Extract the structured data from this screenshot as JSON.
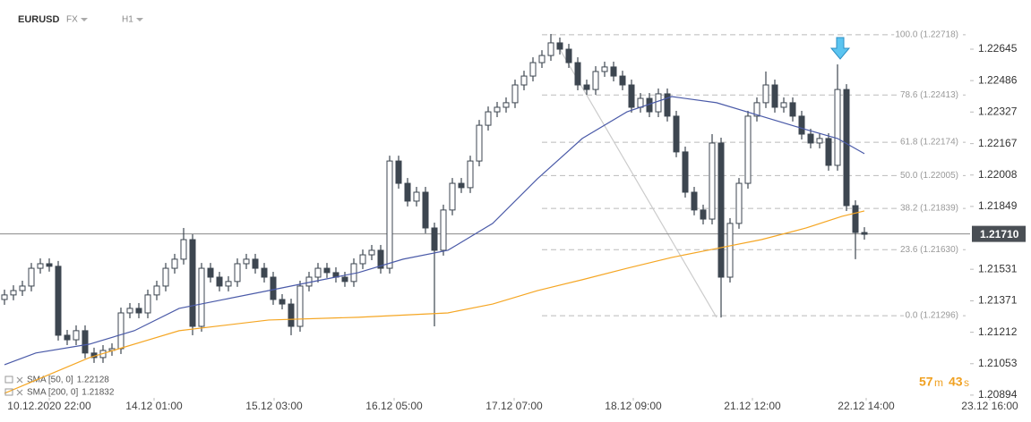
{
  "chart_data": {
    "type": "candlestick",
    "symbol": "EURUSD",
    "market": "FX",
    "interval": "H1",
    "xlim": [
      -0.5,
      114.5
    ],
    "ylim": [
      1.2088,
      1.22894
    ],
    "yticks": [
      1.22645,
      1.22486,
      1.22327,
      1.22167,
      1.22008,
      1.21849,
      1.21531,
      1.21371,
      1.21212,
      1.21053,
      1.20894
    ],
    "xticks": [
      {
        "value": 5,
        "label": "10.12.2020 22:00"
      },
      {
        "value": 16.7,
        "label": "14.12 01:00"
      },
      {
        "value": 30.1,
        "label": "15.12 03:00"
      },
      {
        "value": 43.5,
        "label": "16.12 05:00"
      },
      {
        "value": 56.9,
        "label": "17.12 07:00"
      },
      {
        "value": 70.2,
        "label": "18.12 09:00"
      },
      {
        "value": 83.5,
        "label": "21.12 12:00"
      },
      {
        "value": 96.2,
        "label": "22.12 14:00"
      },
      {
        "value": 110,
        "label": "23.12 16:00"
      }
    ],
    "up_color": "#ffffff",
    "down_color": "#3d4650",
    "wick_color": "#3d4650",
    "ohlc": [
      [
        1.21378,
        1.21428,
        1.21351,
        1.21401
      ],
      [
        1.21401,
        1.2145,
        1.21374,
        1.21423
      ],
      [
        1.21423,
        1.21473,
        1.21396,
        1.21446
      ],
      [
        1.21446,
        1.21563,
        1.21419,
        1.21536
      ],
      [
        1.21536,
        1.21586,
        1.21509,
        1.21559
      ],
      [
        1.21559,
        1.21586,
        1.21519,
        1.21546
      ],
      [
        1.21546,
        1.21573,
        1.2117,
        1.21197
      ],
      [
        1.21197,
        1.21224,
        1.21147,
        1.21174
      ],
      [
        1.21174,
        1.21247,
        1.21147,
        1.2122
      ],
      [
        1.2122,
        1.21247,
        1.2108,
        1.21107
      ],
      [
        1.21107,
        1.21134,
        1.21057,
        1.21084
      ],
      [
        1.21084,
        1.21147,
        1.21057,
        1.2112
      ],
      [
        1.2112,
        1.21156,
        1.21093,
        1.21129
      ],
      [
        1.21129,
        1.21337,
        1.21102,
        1.2131
      ],
      [
        1.2131,
        1.2136,
        1.21283,
        1.21333
      ],
      [
        1.21333,
        1.2136,
        1.21283,
        1.2131
      ],
      [
        1.2131,
        1.21428,
        1.21283,
        1.21401
      ],
      [
        1.21401,
        1.21473,
        1.21374,
        1.21446
      ],
      [
        1.21446,
        1.21563,
        1.21419,
        1.21536
      ],
      [
        1.21536,
        1.21609,
        1.21509,
        1.21582
      ],
      [
        1.21582,
        1.2174,
        1.21555,
        1.21681
      ],
      [
        1.21681,
        1.21708,
        1.21197,
        1.21242
      ],
      [
        1.21242,
        1.21563,
        1.21215,
        1.21536
      ],
      [
        1.21536,
        1.21563,
        1.21464,
        1.21491
      ],
      [
        1.21491,
        1.21518,
        1.21419,
        1.21446
      ],
      [
        1.21446,
        1.21496,
        1.21419,
        1.21469
      ],
      [
        1.21469,
        1.21586,
        1.21442,
        1.21559
      ],
      [
        1.21559,
        1.21609,
        1.21532,
        1.21582
      ],
      [
        1.21582,
        1.21609,
        1.21509,
        1.21536
      ],
      [
        1.21536,
        1.21563,
        1.21464,
        1.21491
      ],
      [
        1.21491,
        1.21518,
        1.21351,
        1.21378
      ],
      [
        1.21378,
        1.21405,
        1.21328,
        1.21355
      ],
      [
        1.21355,
        1.21382,
        1.21197,
        1.21242
      ],
      [
        1.21242,
        1.21473,
        1.21215,
        1.21446
      ],
      [
        1.21446,
        1.21518,
        1.21419,
        1.21491
      ],
      [
        1.21491,
        1.21563,
        1.21464,
        1.21536
      ],
      [
        1.21536,
        1.21563,
        1.21487,
        1.21514
      ],
      [
        1.21514,
        1.21541,
        1.21464,
        1.21491
      ],
      [
        1.21491,
        1.21518,
        1.21442,
        1.21469
      ],
      [
        1.21469,
        1.21586,
        1.21442,
        1.21559
      ],
      [
        1.21559,
        1.21631,
        1.21532,
        1.21604
      ],
      [
        1.21604,
        1.21654,
        1.21577,
        1.21627
      ],
      [
        1.21627,
        1.21654,
        1.21509,
        1.21536
      ],
      [
        1.21536,
        1.22106,
        1.21509,
        1.22079
      ],
      [
        1.22079,
        1.22106,
        1.21939,
        1.21966
      ],
      [
        1.21966,
        1.21993,
        1.21849,
        1.21876
      ],
      [
        1.21876,
        1.21948,
        1.21849,
        1.21921
      ],
      [
        1.21921,
        1.21948,
        1.21713,
        1.2174
      ],
      [
        1.2174,
        1.21767,
        1.21242,
        1.21627
      ],
      [
        1.21627,
        1.21858,
        1.216,
        1.21831
      ],
      [
        1.21831,
        1.21993,
        1.21804,
        1.21966
      ],
      [
        1.21966,
        1.21993,
        1.21917,
        1.21944
      ],
      [
        1.21944,
        1.22106,
        1.21917,
        1.22079
      ],
      [
        1.22079,
        1.22287,
        1.22052,
        1.2226
      ],
      [
        1.2226,
        1.22355,
        1.22233,
        1.22328
      ],
      [
        1.22328,
        1.22378,
        1.22301,
        1.22351
      ],
      [
        1.22351,
        1.22401,
        1.22324,
        1.22374
      ],
      [
        1.22374,
        1.22491,
        1.22347,
        1.22464
      ],
      [
        1.22464,
        1.22536,
        1.22437,
        1.22509
      ],
      [
        1.22509,
        1.22604,
        1.22482,
        1.22577
      ],
      [
        1.22577,
        1.2264,
        1.2255,
        1.22613
      ],
      [
        1.22613,
        1.22722,
        1.22586,
        1.22677
      ],
      [
        1.22677,
        1.22704,
        1.22618,
        1.22645
      ],
      [
        1.22645,
        1.22672,
        1.2255,
        1.22577
      ],
      [
        1.22577,
        1.22604,
        1.22437,
        1.22464
      ],
      [
        1.22464,
        1.22491,
        1.22414,
        1.22441
      ],
      [
        1.22441,
        1.22559,
        1.22414,
        1.22532
      ],
      [
        1.22532,
        1.22582,
        1.22505,
        1.22555
      ],
      [
        1.22555,
        1.22582,
        1.22482,
        1.22509
      ],
      [
        1.22509,
        1.22536,
        1.22437,
        1.22464
      ],
      [
        1.22464,
        1.22491,
        1.22324,
        1.22351
      ],
      [
        1.22351,
        1.22423,
        1.22324,
        1.22396
      ],
      [
        1.22396,
        1.22423,
        1.22301,
        1.22328
      ],
      [
        1.22328,
        1.22446,
        1.22301,
        1.22419
      ],
      [
        1.22419,
        1.22446,
        1.22279,
        1.22306
      ],
      [
        1.22306,
        1.22333,
        1.22098,
        1.22125
      ],
      [
        1.22125,
        1.22152,
        1.21894,
        1.21921
      ],
      [
        1.21921,
        1.21948,
        1.21804,
        1.21831
      ],
      [
        1.21831,
        1.21858,
        1.21758,
        1.21785
      ],
      [
        1.21785,
        1.22215,
        1.21758,
        1.2217
      ],
      [
        1.2217,
        1.22197,
        1.21287,
        1.21491
      ],
      [
        1.21491,
        1.2179,
        1.21464,
        1.21763
      ],
      [
        1.21763,
        1.21993,
        1.21736,
        1.21966
      ],
      [
        1.21966,
        1.22333,
        1.21939,
        1.22306
      ],
      [
        1.22306,
        1.22401,
        1.22279,
        1.22374
      ],
      [
        1.22374,
        1.22532,
        1.22347,
        1.22464
      ],
      [
        1.22464,
        1.22491,
        1.22324,
        1.22351
      ],
      [
        1.22351,
        1.22401,
        1.22324,
        1.22374
      ],
      [
        1.22374,
        1.22401,
        1.22279,
        1.22306
      ],
      [
        1.22306,
        1.22333,
        1.22188,
        1.22215
      ],
      [
        1.22215,
        1.22242,
        1.22143,
        1.2217
      ],
      [
        1.2217,
        1.2222,
        1.22143,
        1.22193
      ],
      [
        1.22193,
        1.2222,
        1.2203,
        1.22057
      ],
      [
        1.22057,
        1.22568,
        1.2203,
        1.22441
      ],
      [
        1.22441,
        1.22468,
        1.21826,
        1.21853
      ],
      [
        1.21853,
        1.2188,
        1.21582,
        1.21717
      ],
      [
        1.21717,
        1.21744,
        1.21681,
        1.21708
      ]
    ],
    "series": [
      {
        "name": "SMA [50, 0]",
        "legend_value": 1.22128,
        "color": "#4a5aa8",
        "x": [
          0,
          3.5,
          9.5,
          14.5,
          19.5,
          24.5,
          29.5,
          34.5,
          39.5,
          44.5,
          49.5,
          54.5,
          59.5,
          64.5,
          69.5,
          74.5,
          79.5,
          84.5,
          89.5,
          93,
          96
        ],
        "values": [
          1.21048,
          1.21107,
          1.21152,
          1.2122,
          1.21333,
          1.21378,
          1.21423,
          1.21469,
          1.21514,
          1.21582,
          1.21627,
          1.21763,
          1.21989,
          1.22193,
          1.22328,
          1.22405,
          1.22374,
          1.22306,
          1.22238,
          1.22193,
          1.22116
        ]
      },
      {
        "name": "SMA [200, 0]",
        "legend_value": 1.21832,
        "color": "#f5a623",
        "x": [
          0,
          9.5,
          19.5,
          29.5,
          39.5,
          49.5,
          54.5,
          59.5,
          64.5,
          69.5,
          74.5,
          79.5,
          84.5,
          89.5,
          93.5,
          96
        ],
        "values": [
          1.20903,
          1.21084,
          1.2122,
          1.21274,
          1.21288,
          1.2131,
          1.21355,
          1.21423,
          1.21478,
          1.21536,
          1.21591,
          1.21636,
          1.21681,
          1.2174,
          1.21799,
          1.21826
        ]
      }
    ],
    "fib_start": 60,
    "fib_levels": [
      {
        "value": 1.22718,
        "label": "100.0 (1.22718)"
      },
      {
        "value": 1.22413,
        "label": "78.6 (1.22413)"
      },
      {
        "value": 1.22174,
        "label": "61.8 (1.22174)"
      },
      {
        "value": 1.22005,
        "label": "50.0 (1.22005)"
      },
      {
        "value": 1.21839,
        "label": "38.2 (1.21839)"
      },
      {
        "value": 1.2163,
        "label": "23.6 (1.21630)"
      },
      {
        "value": 1.21296,
        "label": "0.0 (1.21296)"
      }
    ],
    "trendline": {
      "x": [
        62,
        79.5
      ],
      "values": [
        1.22645,
        1.21287
      ]
    },
    "last_price": {
      "value": 1.2171,
      "label": "1.21710"
    },
    "timer": {
      "minutes": 57,
      "minutes_unit": "m",
      "seconds": 43,
      "seconds_unit": "s"
    }
  }
}
